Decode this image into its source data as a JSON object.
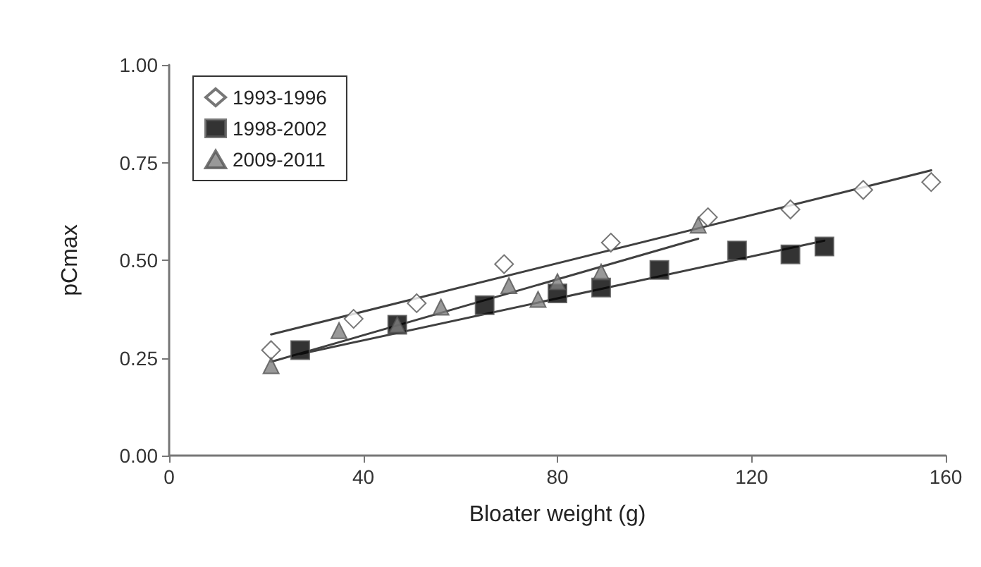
{
  "chart_data": {
    "type": "scatter",
    "xlabel": "Bloater weight (g)",
    "ylabel": "pCmax",
    "xlim": [
      0,
      160
    ],
    "xticks": [
      0,
      40,
      80,
      120,
      160
    ],
    "ylim": [
      0,
      1
    ],
    "yticks": [
      {
        "value": 0,
        "label": "0.00"
      },
      {
        "value": 0.25,
        "label": "0.25"
      },
      {
        "value": 0.5,
        "label": "0.50"
      },
      {
        "value": 0.75,
        "label": "0.75"
      },
      {
        "value": 1,
        "label": "1.00"
      }
    ],
    "grid": false,
    "legend": "top left",
    "series": [
      {
        "name": "1993-1996",
        "marker": "diamond",
        "color": "#ffffff",
        "x": [
          21,
          38,
          51,
          69,
          91,
          111,
          128,
          143,
          157
        ],
        "values": [
          0.27,
          0.35,
          0.39,
          0.49,
          0.545,
          0.61,
          0.63,
          0.68,
          0.7
        ]
      },
      {
        "name": "1998-2002",
        "marker": "square",
        "color": "#000000",
        "x": [
          27,
          47,
          65,
          80,
          89,
          101,
          117,
          128,
          135
        ],
        "values": [
          0.27,
          0.335,
          0.385,
          0.415,
          0.43,
          0.475,
          0.525,
          0.515,
          0.535
        ]
      },
      {
        "name": "2009-2011",
        "marker": "triangle",
        "color": "#808080",
        "x": [
          21,
          35,
          47,
          56,
          70,
          76,
          80,
          89,
          109
        ],
        "values": [
          0.23,
          0.32,
          0.335,
          0.38,
          0.435,
          0.4,
          0.445,
          0.47,
          0.59
        ]
      },
      {
        "type": "line",
        "color": "#404040",
        "x": [
          21,
          157
        ],
        "values": [
          0.31,
          0.73
        ]
      },
      {
        "type": "line",
        "color": "#404040",
        "x": [
          27,
          135
        ],
        "values": [
          0.26,
          0.55
        ]
      },
      {
        "type": "line",
        "color": "#404040",
        "x": [
          21,
          109
        ],
        "values": [
          0.24,
          0.555
        ]
      }
    ]
  }
}
